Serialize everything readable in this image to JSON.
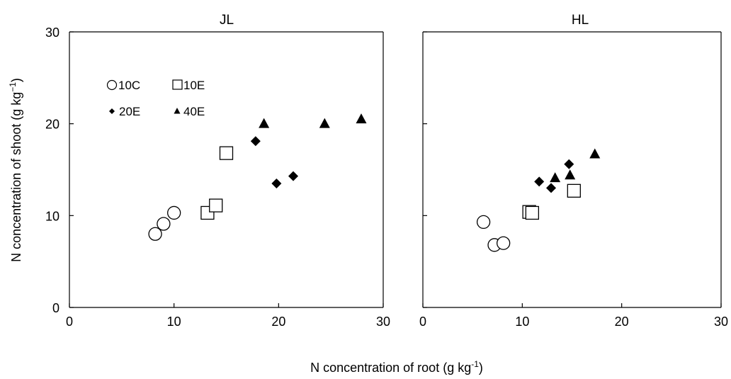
{
  "chart_data": [
    {
      "type": "scatter",
      "title": "JL",
      "xlim": [
        0,
        30
      ],
      "ylim": [
        0,
        30
      ],
      "x_ticks": [
        "0",
        "10",
        "20",
        "30"
      ],
      "y_ticks": [
        "0",
        "10",
        "20",
        "30"
      ],
      "grid": false,
      "legend": "top-left",
      "series": [
        {
          "name": "10C",
          "marker": "circle-open",
          "points": [
            [
              8.2,
              8.0
            ],
            [
              9.0,
              9.1
            ],
            [
              10.0,
              10.3
            ]
          ]
        },
        {
          "name": "10E",
          "marker": "square-open",
          "points": [
            [
              13.2,
              10.3
            ],
            [
              14.0,
              11.1
            ],
            [
              15.0,
              16.8
            ]
          ]
        },
        {
          "name": "20E",
          "marker": "diamond-filled",
          "points": [
            [
              17.8,
              18.1
            ],
            [
              19.8,
              13.5
            ],
            [
              21.4,
              14.3
            ]
          ]
        },
        {
          "name": "40E",
          "marker": "triangle-filled",
          "points": [
            [
              18.6,
              20.0
            ],
            [
              24.4,
              20.0
            ],
            [
              27.9,
              20.5
            ]
          ]
        }
      ]
    },
    {
      "type": "scatter",
      "title": "HL",
      "xlim": [
        0,
        30
      ],
      "ylim": [
        0,
        30
      ],
      "x_ticks": [
        "0",
        "10",
        "20",
        "30"
      ],
      "y_ticks": [],
      "grid": false,
      "series": [
        {
          "name": "10C",
          "marker": "circle-open",
          "points": [
            [
              6.1,
              9.3
            ],
            [
              7.2,
              6.8
            ],
            [
              8.1,
              7.0
            ]
          ]
        },
        {
          "name": "10E",
          "marker": "square-open",
          "points": [
            [
              10.7,
              10.4
            ],
            [
              11.0,
              10.3
            ],
            [
              15.2,
              12.7
            ]
          ]
        },
        {
          "name": "20E",
          "marker": "diamond-filled",
          "points": [
            [
              11.7,
              13.7
            ],
            [
              12.9,
              13.0
            ],
            [
              14.7,
              15.6
            ]
          ]
        },
        {
          "name": "40E",
          "marker": "triangle-filled",
          "points": [
            [
              13.3,
              14.1
            ],
            [
              14.8,
              14.4
            ],
            [
              17.3,
              16.7
            ]
          ]
        }
      ]
    }
  ],
  "labels": {
    "ylabel_main": "N concentration of shoot (g kg",
    "ylabel_sup": "−1",
    "ylabel_close": ")",
    "xlabel_main": "N concentration of root (g kg",
    "xlabel_sup": "-1",
    "xlabel_close": ")"
  }
}
